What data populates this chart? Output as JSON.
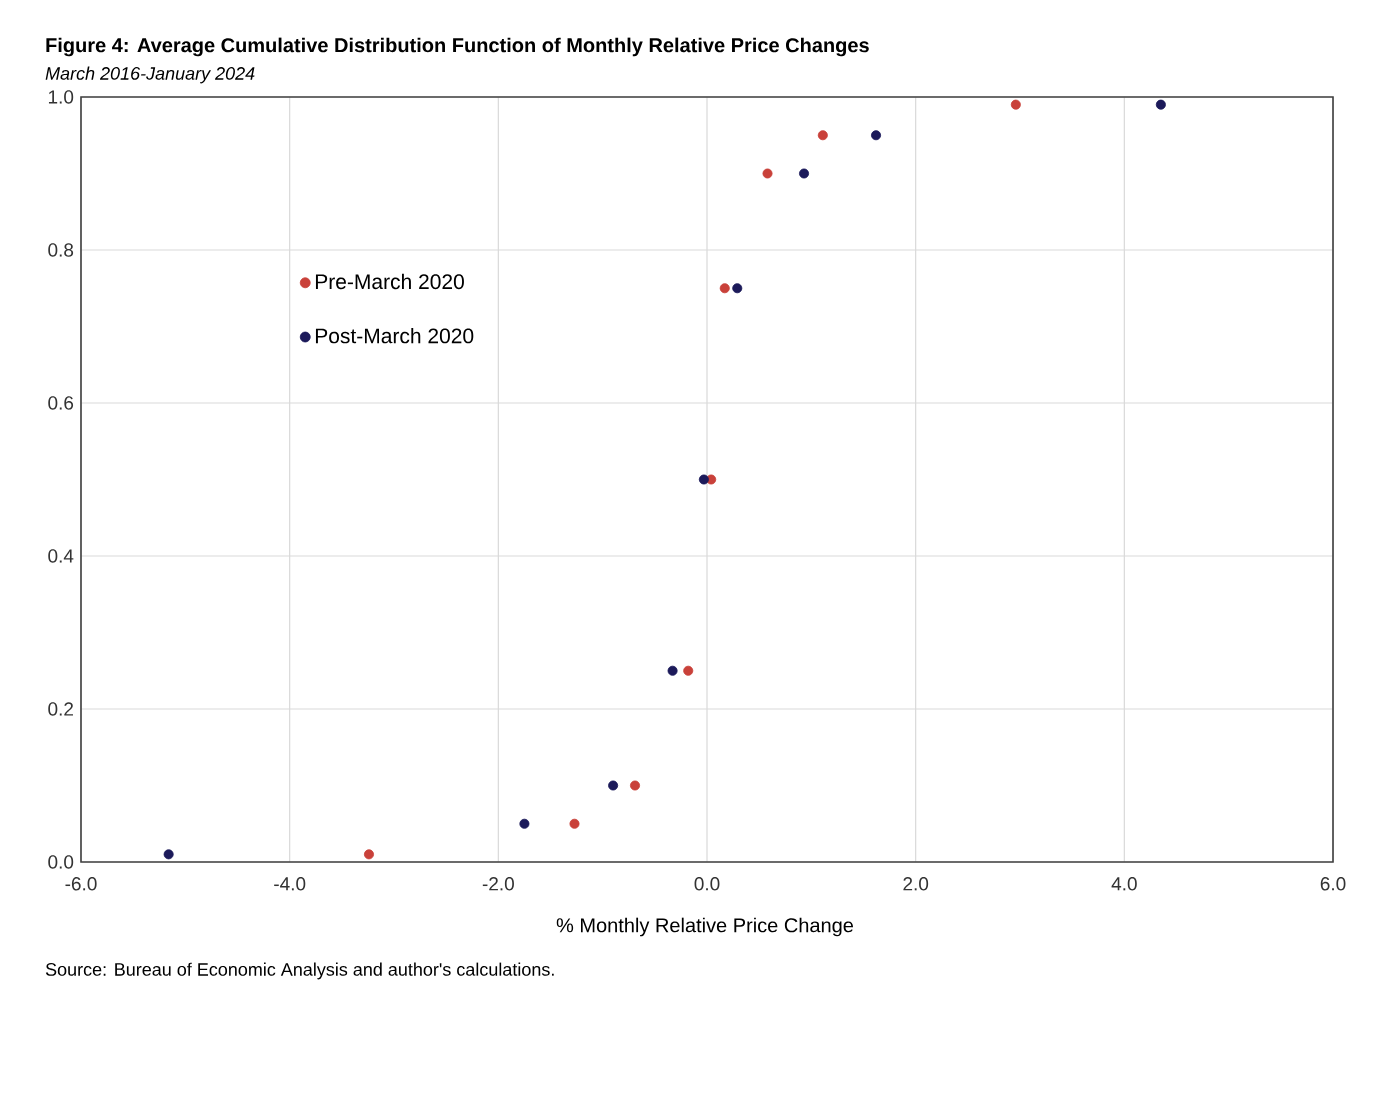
{
  "chart_data": {
    "type": "scatter",
    "title": "Figure 4: Average Cumulative Distribution Function of Monthly Relative Price Changes",
    "subtitle": "March 2016-January 2024",
    "xlabel": "% Monthly  Relative Price Change",
    "annotations": [
      "Source: Bureau of Economic Analysis and author's calculations."
    ],
    "series": [
      {
        "name": "Pre-March 2020",
        "color": "#c9413a",
        "x": [
          -3.24,
          -1.27,
          -0.69,
          -0.18,
          0.04,
          0.17,
          0.58,
          1.11,
          2.96
        ],
        "values": [
          0.01,
          0.05,
          0.1,
          0.25,
          0.5,
          0.75,
          0.9,
          0.95,
          0.99
        ]
      },
      {
        "name": "Post-March 2020",
        "color": "#1c1a5a",
        "x": [
          -5.16,
          -1.75,
          -0.9,
          -0.33,
          -0.03,
          0.29,
          0.93,
          1.62,
          4.35
        ],
        "values": [
          0.01,
          0.05,
          0.1,
          0.25,
          0.5,
          0.75,
          0.9,
          0.95,
          0.99
        ]
      }
    ],
    "xlim": [
      -6,
      6
    ],
    "ylim": [
      0,
      1
    ],
    "xticks": [
      {
        "value": -6,
        "label": "-6.0"
      },
      {
        "value": -4,
        "label": "-4.0"
      },
      {
        "value": -2,
        "label": "-2.0"
      },
      {
        "value": 0,
        "label": "0.0"
      },
      {
        "value": 2,
        "label": "2.0"
      },
      {
        "value": 4,
        "label": "4.0"
      },
      {
        "value": 6,
        "label": "6.0"
      }
    ],
    "yticks": [
      {
        "value": 0,
        "label": "0.0"
      },
      {
        "value": 0.2,
        "label": "0.2"
      },
      {
        "value": 0.4,
        "label": "0.4"
      },
      {
        "value": 0.6,
        "label": "0.6"
      },
      {
        "value": 0.8,
        "label": "0.8"
      },
      {
        "value": 1,
        "label": "1.0"
      }
    ],
    "grid": true,
    "legend": "top left"
  }
}
